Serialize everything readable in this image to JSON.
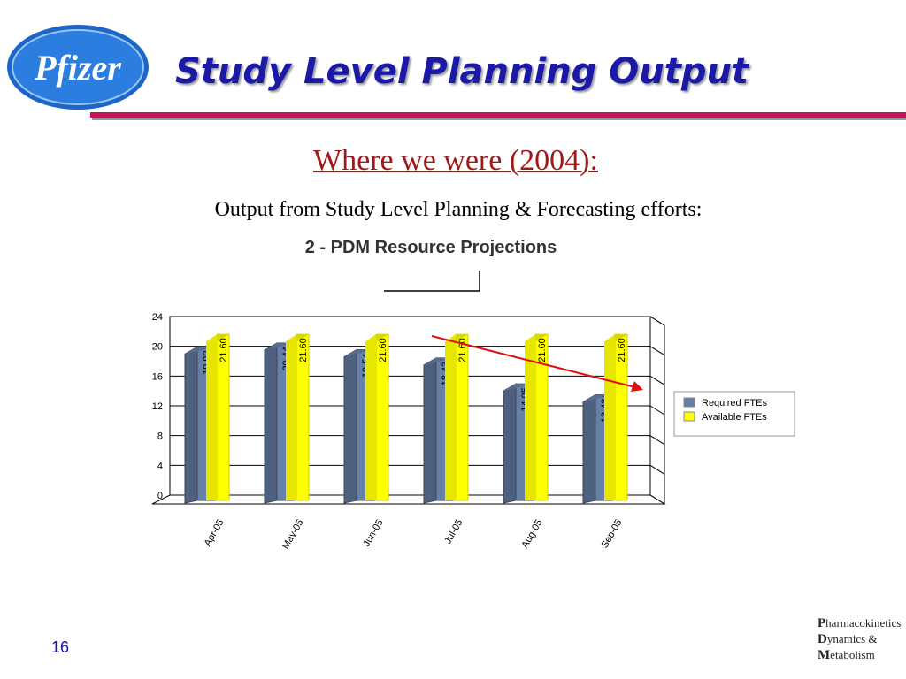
{
  "logo": "Pfizer",
  "title": "Study Level Planning Output",
  "heading": "Where we were (2004):",
  "subheading": "Output from Study Level Planning & Forecasting efforts:",
  "page_number": "16",
  "footer": [
    "Pharmacokinetics",
    "Dynamics &",
    "Metabolism"
  ],
  "chart_data": {
    "type": "bar",
    "title": "2 - PDM Resource Projections",
    "categories": [
      "Apr-05",
      "May-05",
      "Jun-05",
      "Jul-05",
      "Aug-05",
      "Sep-05"
    ],
    "series": [
      {
        "name": "Required FTEs",
        "color": "#6680a8",
        "values": [
          19.92,
          20.44,
          19.54,
          18.43,
          14.95,
          13.48
        ]
      },
      {
        "name": "Available FTEs",
        "color": "#ffff00",
        "values": [
          21.6,
          21.6,
          21.6,
          21.6,
          21.6,
          21.6
        ],
        "value_labels": [
          "21.60",
          "21.60",
          "21.60",
          "21.60",
          "21.60",
          "21.60"
        ]
      }
    ],
    "ylim": [
      0,
      24
    ],
    "yticks": [
      0,
      4,
      8,
      12,
      16,
      20,
      24
    ],
    "grid": true,
    "legend": "right"
  }
}
